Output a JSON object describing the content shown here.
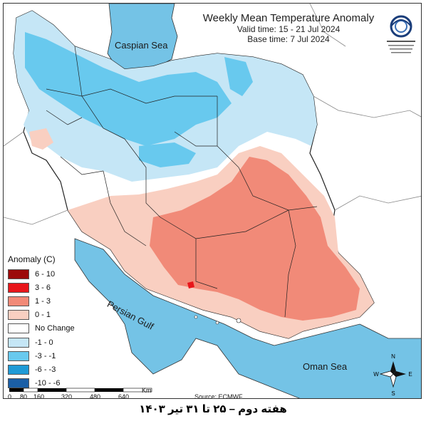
{
  "title": "Weekly Mean Temperature Anomaly",
  "valid_time": "Valid time: 15 - 21 Jul 2024",
  "base_time": "Base time: 7 Jul 2024",
  "labels": {
    "caspian": "Caspian Sea",
    "gulf": "Persian Gulf",
    "oman": "Oman Sea"
  },
  "legend": {
    "title": "Anomaly (C)",
    "items": [
      {
        "label": "6 - 10",
        "color": "#9c0a0a"
      },
      {
        "label": "3 - 6",
        "color": "#e8161b"
      },
      {
        "label": "1 - 3",
        "color": "#f18a78"
      },
      {
        "label": "0 - 1",
        "color": "#f9cfc1"
      },
      {
        "label": "No Change",
        "color": "#ffffff"
      },
      {
        "label": "-1 - 0",
        "color": "#c5e6f6"
      },
      {
        "label": "-3 - -1",
        "color": "#68c9ee"
      },
      {
        "label": "-6 - -3",
        "color": "#1f9ad6"
      },
      {
        "label": "-10 - -6",
        "color": "#1b5fa6"
      }
    ]
  },
  "scale": {
    "unit": "Km",
    "ticks": [
      "0",
      "80",
      "160",
      "320",
      "480",
      "640"
    ]
  },
  "source": "Source: ECMWF",
  "compass": {
    "n": "N",
    "s": "S",
    "e": "E",
    "w": "W"
  },
  "caption": "هفته دوم – ۲۵ تا ۳۱ تیر ۱۴۰۳",
  "colors": {
    "sea": "#74c3e6",
    "land": "#ffffff",
    "border": "#222222"
  }
}
